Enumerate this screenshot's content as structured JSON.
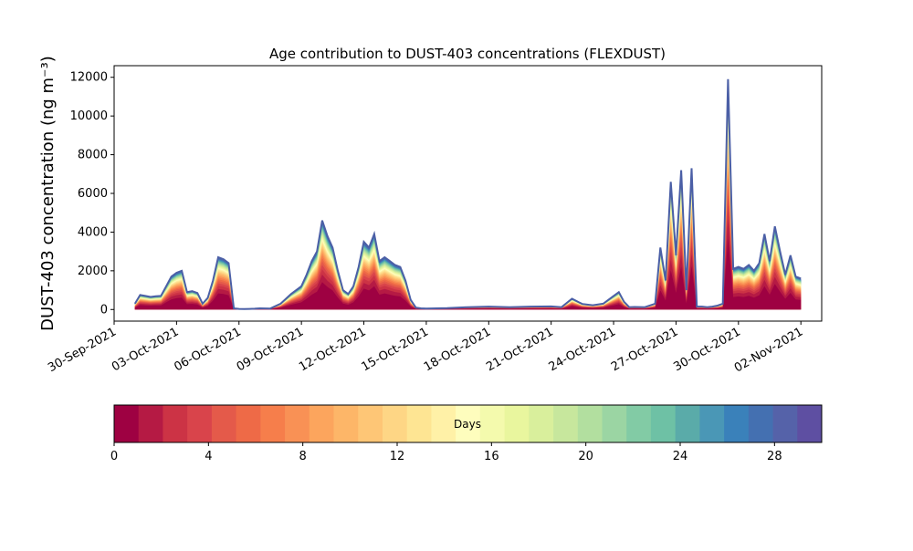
{
  "chart_data": {
    "type": "area",
    "title": "Age contribution to DUST-403 concentrations (FLEXDUST)",
    "ylabel": "DUST-403 concentration (ng m⁻³)",
    "xlabel": "",
    "x_range": [
      "2021-09-30",
      "2021-11-03"
    ],
    "ylim": [
      -600,
      12600
    ],
    "x_ticks": [
      "30-Sep-2021",
      "03-Oct-2021",
      "06-Oct-2021",
      "09-Oct-2021",
      "12-Oct-2021",
      "15-Oct-2021",
      "18-Oct-2021",
      "21-Oct-2021",
      "24-Oct-2021",
      "27-Oct-2021",
      "30-Oct-2021",
      "02-Nov-2021"
    ],
    "y_ticks": [
      "0",
      "2000",
      "4000",
      "6000",
      "8000",
      "10000",
      "12000"
    ],
    "grid": false,
    "stacked_by": "age in days (0-30), colored bands from dark red (young) to blue-purple (old)",
    "colorbar": {
      "label": "Days",
      "range": [
        0,
        30
      ],
      "ticks": [
        "0",
        "4",
        "8",
        "12",
        "16",
        "20",
        "24",
        "28"
      ],
      "colors": [
        "#9e0142",
        "#b51a44",
        "#cc3345",
        "#d9444b",
        "#e45a4a",
        "#ee6a47",
        "#f67e4b",
        "#f99155",
        "#fca55d",
        "#fdb668",
        "#fec676",
        "#fed685",
        "#fee593",
        "#fff1a7",
        "#fefdbd",
        "#f4faad",
        "#e9f69e",
        "#d9ef9c",
        "#c7e79d",
        "#b2df9f",
        "#9bd5a3",
        "#82cba5",
        "#6ec1a5",
        "#5aaba9",
        "#4a97b6",
        "#3a81ba",
        "#4470b1",
        "#5562a9",
        "#5e4fa2"
      ]
    },
    "series": [
      {
        "x": [
          "2021-10-01",
          "2021-10-01 06:00",
          "2021-10-01 12:00",
          "2021-10-01 18:00",
          "2021-10-02",
          "2021-10-02 06:00",
          "2021-10-02 12:00",
          "2021-10-02 18:00",
          "2021-10-03",
          "2021-10-03 06:00",
          "2021-10-03 12:00",
          "2021-10-03 18:00",
          "2021-10-04",
          "2021-10-04 06:00",
          "2021-10-04 12:00",
          "2021-10-04 18:00",
          "2021-10-05",
          "2021-10-05 06:00",
          "2021-10-05 12:00",
          "2021-10-05 18:00",
          "2021-10-06",
          "2021-10-06 06:00",
          "2021-10-06 12:00",
          "2021-10-06 18:00",
          "2021-10-07",
          "2021-10-07 12:00",
          "2021-10-08",
          "2021-10-08 12:00",
          "2021-10-09",
          "2021-10-09 06:00",
          "2021-10-09 12:00",
          "2021-10-09 18:00",
          "2021-10-10",
          "2021-10-10 06:00",
          "2021-10-10 12:00",
          "2021-10-10 18:00",
          "2021-10-11",
          "2021-10-11 06:00",
          "2021-10-11 12:00",
          "2021-10-11 18:00",
          "2021-10-12",
          "2021-10-12 06:00",
          "2021-10-12 12:00",
          "2021-10-12 18:00",
          "2021-10-13",
          "2021-10-13 06:00",
          "2021-10-13 12:00",
          "2021-10-13 18:00",
          "2021-10-14",
          "2021-10-14 06:00",
          "2021-10-14 12:00",
          "2021-10-14 18:00",
          "2021-10-15",
          "2021-10-15 12:00",
          "2021-10-16",
          "2021-10-17",
          "2021-10-18",
          "2021-10-19",
          "2021-10-20",
          "2021-10-21",
          "2021-10-21 12:00",
          "2021-10-22",
          "2021-10-22 12:00",
          "2021-10-23",
          "2021-10-23 12:00",
          "2021-10-24",
          "2021-10-24 06:00",
          "2021-10-24 12:00",
          "2021-10-24 18:00",
          "2021-10-25",
          "2021-10-25 12:00",
          "2021-10-26",
          "2021-10-26 06:00",
          "2021-10-26 12:00",
          "2021-10-26 18:00",
          "2021-10-27",
          "2021-10-27 06:00",
          "2021-10-27 12:00",
          "2021-10-27 18:00",
          "2021-10-28",
          "2021-10-28 06:00",
          "2021-10-28 12:00",
          "2021-10-28 18:00",
          "2021-10-29",
          "2021-10-29 06:00",
          "2021-10-29 12:00",
          "2021-10-29 18:00",
          "2021-10-30",
          "2021-10-30 06:00",
          "2021-10-30 12:00",
          "2021-10-30 18:00",
          "2021-10-31",
          "2021-10-31 06:00",
          "2021-10-31 12:00",
          "2021-10-31 18:00",
          "2021-11-01",
          "2021-11-01 06:00",
          "2021-11-01 12:00",
          "2021-11-01 18:00",
          "2021-11-02"
        ],
        "name": "",
        "values": [
          300,
          750,
          700,
          650,
          680,
          700,
          1200,
          1700,
          1900,
          2000,
          900,
          950,
          850,
          300,
          600,
          1500,
          2700,
          2600,
          2400,
          60,
          30,
          20,
          30,
          40,
          60,
          50,
          300,
          800,
          1200,
          1800,
          2500,
          3000,
          4600,
          3800,
          3200,
          2000,
          1000,
          800,
          1200,
          2200,
          3500,
          3200,
          3900,
          2500,
          2700,
          2500,
          2300,
          2200,
          1500,
          500,
          100,
          60,
          50,
          60,
          70,
          120,
          150,
          120,
          150,
          160,
          120,
          560,
          280,
          220,
          300,
          700,
          900,
          400,
          120,
          130,
          120,
          300,
          3200,
          1500,
          6600,
          2800,
          7200,
          1000,
          7300,
          150,
          150,
          120,
          150,
          200,
          300,
          11900,
          2100,
          2200,
          2100,
          2300,
          2000,
          2400,
          3900,
          2500,
          4300,
          3000,
          1800,
          2800,
          1700,
          1600
        ]
      }
    ]
  }
}
